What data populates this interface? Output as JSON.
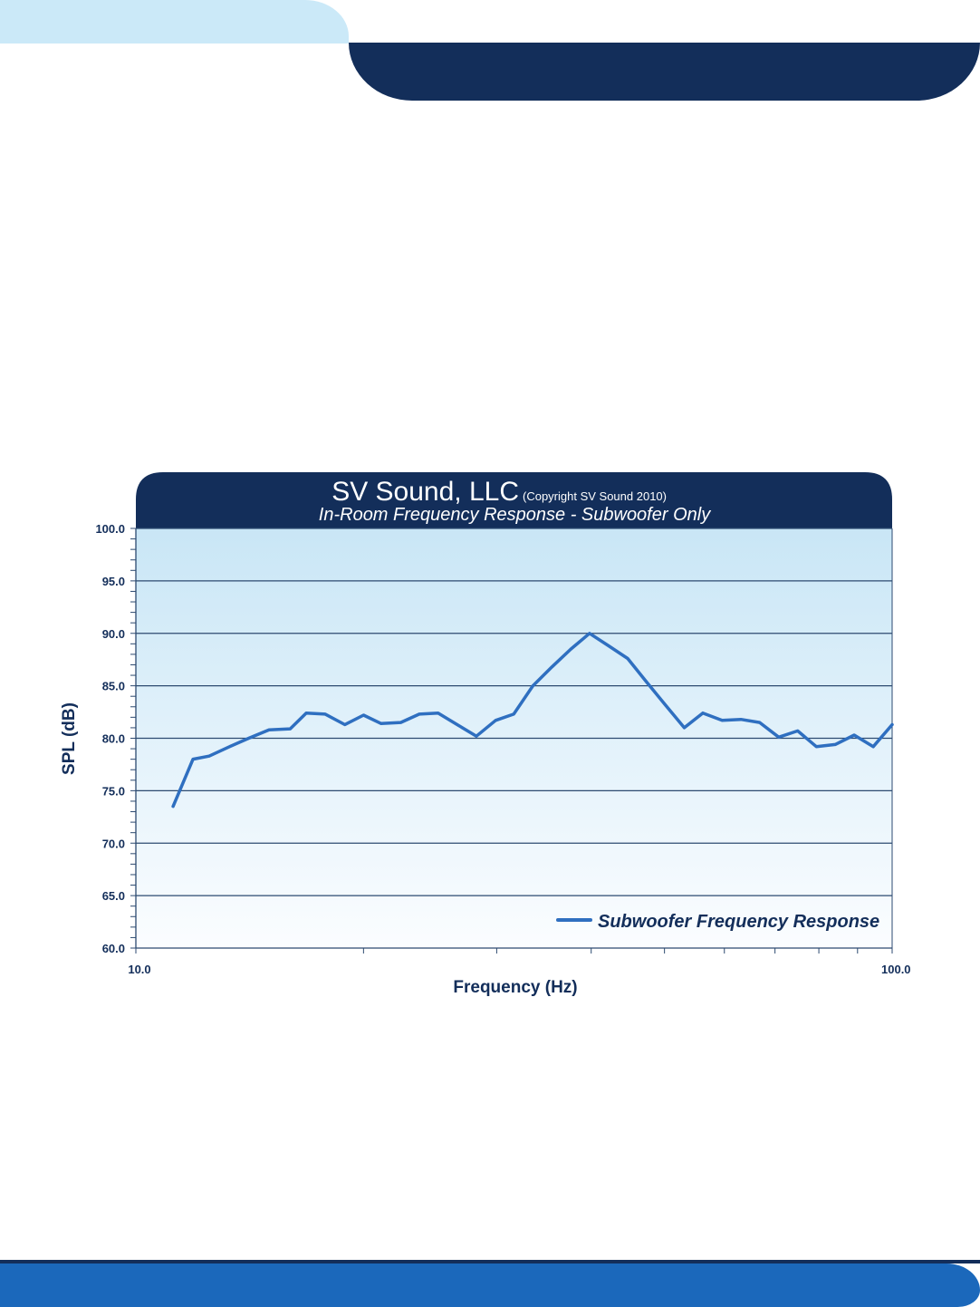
{
  "colors": {
    "light_tab": "#cbe9f8",
    "dark_band": "#132e5a",
    "bottom_band": "#1b68bb",
    "series_line": "#2f6fc0",
    "grid": "#2c4a70"
  },
  "chart_data": {
    "type": "line",
    "title": "SV Sound, LLC",
    "copyright": "(Copyright SV Sound 2010)",
    "subtitle": "In-Room Frequency Response - Subwoofer Only",
    "xlabel": "Frequency (Hz)",
    "ylabel": "SPL (dB)",
    "x_scale": "log",
    "xlim": [
      10,
      100
    ],
    "ylim": [
      60,
      100
    ],
    "x_tick_labels": [
      "10.0",
      "100.0"
    ],
    "y_tick_labels": [
      "100.0",
      "95.0",
      "90.0",
      "85.0",
      "80.0",
      "75.0",
      "70.0",
      "65.0",
      "60.0"
    ],
    "grid": "horizontal",
    "legend_position": "bottom-right",
    "series": [
      {
        "name": "Subwoofer Frequency Response",
        "x": [
          11.2,
          11.9,
          12.5,
          13.3,
          14.1,
          15.0,
          16.0,
          16.8,
          17.8,
          18.9,
          20.0,
          21.1,
          22.4,
          23.7,
          25.1,
          26.6,
          28.2,
          29.9,
          31.6,
          33.5,
          35.5,
          37.6,
          39.8,
          42.2,
          44.7,
          47.3,
          50.1,
          53.1,
          56.2,
          59.6,
          63.1,
          66.8,
          70.8,
          75.0,
          79.4,
          84.1,
          89.1,
          94.4,
          100.0
        ],
        "y": [
          73.5,
          78.0,
          78.3,
          79.2,
          80.0,
          80.8,
          80.9,
          82.4,
          82.3,
          81.3,
          82.2,
          81.4,
          81.5,
          82.3,
          82.4,
          81.3,
          80.2,
          81.7,
          82.3,
          85.0,
          86.8,
          88.5,
          90.0,
          88.8,
          87.6,
          85.4,
          83.2,
          81.0,
          82.4,
          81.7,
          81.8,
          81.5,
          80.1,
          80.7,
          79.2,
          79.4,
          80.3,
          79.2,
          81.3
        ]
      }
    ]
  }
}
